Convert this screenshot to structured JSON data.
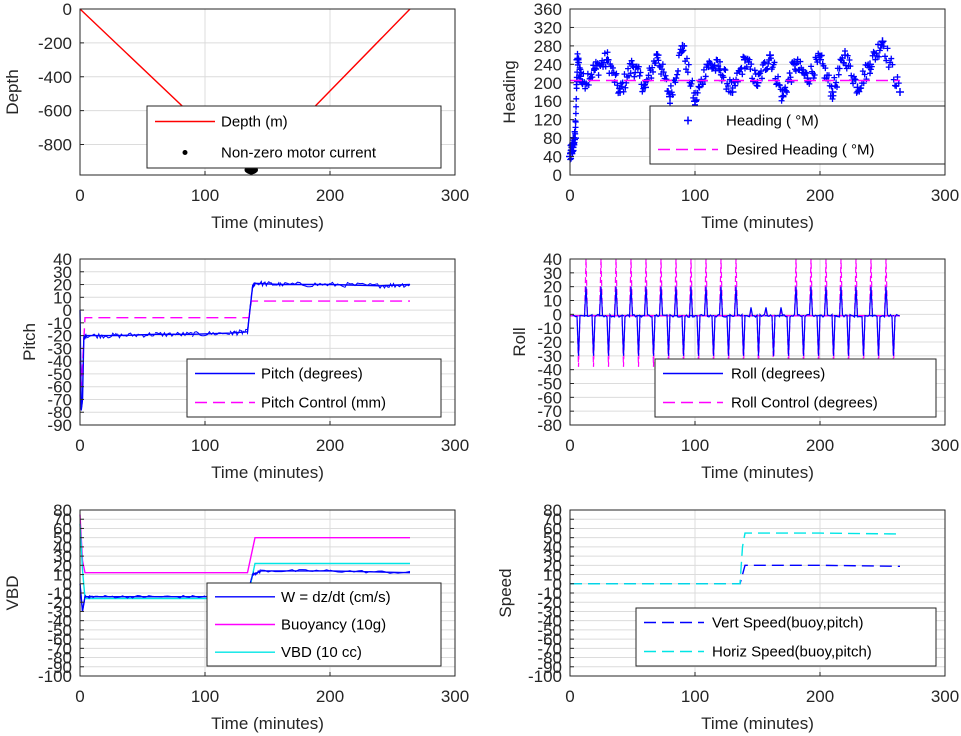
{
  "chart_data": [
    {
      "type": "line",
      "ylabel": "Depth",
      "xlabel": "Time (minutes)",
      "xlim": [
        0,
        300
      ],
      "ylim": [
        -980,
        0
      ],
      "xticks": [
        0,
        100,
        200,
        300
      ],
      "yticks": [
        0,
        -200,
        -400,
        -600,
        -800
      ],
      "grid": true,
      "legend_placement": "bottom-right",
      "series": [
        {
          "name": "Depth (m)",
          "style": "solid",
          "color": "#ff0000",
          "x": [
            0,
            137,
            264
          ],
          "y": [
            0,
            -960,
            0
          ]
        },
        {
          "name": "Non-zero motor current",
          "style": "dots",
          "color": "#000000",
          "x": [
            134,
            135,
            136,
            137,
            138,
            139,
            140
          ],
          "y": [
            -950,
            -955,
            -958,
            -960,
            -958,
            -955,
            -950
          ]
        }
      ]
    },
    {
      "type": "scatter",
      "ylabel": "Heading",
      "xlabel": "Time (minutes)",
      "xlim": [
        0,
        300
      ],
      "ylim": [
        0,
        360
      ],
      "xticks": [
        0,
        100,
        200,
        300
      ],
      "yticks": [
        0,
        40,
        80,
        120,
        160,
        200,
        240,
        280,
        320,
        360
      ],
      "grid": true,
      "legend_placement": "bottom-right",
      "series": [
        {
          "name": "Heading ( °M)",
          "style": "plus",
          "color": "#0000ff",
          "x": [
            0,
            2,
            4,
            6,
            10,
            20,
            30,
            40,
            50,
            60,
            70,
            80,
            90,
            100,
            110,
            120,
            130,
            140,
            150,
            160,
            170,
            180,
            190,
            200,
            210,
            220,
            230,
            240,
            250,
            264
          ],
          "y": [
            40,
            60,
            80,
            250,
            200,
            230,
            250,
            180,
            240,
            190,
            260,
            170,
            280,
            160,
            240,
            230,
            180,
            250,
            200,
            260,
            170,
            240,
            210,
            250,
            180,
            260,
            190,
            240,
            290,
            180
          ]
        },
        {
          "name": "Desired Heading ( °M)",
          "style": "dashed",
          "color": "#ff00ff",
          "x": [
            0,
            264
          ],
          "y": [
            205,
            205
          ]
        }
      ]
    },
    {
      "type": "line",
      "ylabel": "Pitch",
      "xlabel": "Time (minutes)",
      "xlim": [
        0,
        300
      ],
      "ylim": [
        -90,
        40
      ],
      "xticks": [
        0,
        100,
        200,
        300
      ],
      "yticks": [
        40,
        30,
        20,
        10,
        0,
        -10,
        -20,
        -30,
        -40,
        -50,
        -60,
        -70,
        -80,
        -90
      ],
      "grid": true,
      "legend_placement": "bottom-right",
      "series": [
        {
          "name": "Pitch (degrees)",
          "style": "solid",
          "color": "#0000ff",
          "x": [
            0,
            1,
            2,
            3,
            5,
            30,
            60,
            90,
            120,
            134,
            138,
            140,
            160,
            200,
            240,
            264
          ],
          "y": [
            0,
            -78,
            -70,
            -22,
            -20,
            -20,
            -19,
            -19,
            -18,
            -17,
            18,
            21,
            20,
            20,
            19,
            20
          ]
        },
        {
          "name": "Pitch Control (mm)",
          "style": "dashed",
          "color": "#ff00ff",
          "x": [
            0,
            1,
            4,
            134,
            135,
            137,
            264
          ],
          "y": [
            -40,
            -60,
            -6,
            -6,
            -6,
            7,
            7
          ]
        }
      ]
    },
    {
      "type": "line",
      "ylabel": "Roll",
      "xlabel": "Time (minutes)",
      "xlim": [
        0,
        300
      ],
      "ylim": [
        -80,
        40
      ],
      "xticks": [
        0,
        100,
        200,
        300
      ],
      "yticks": [
        40,
        30,
        20,
        10,
        0,
        -10,
        -20,
        -30,
        -40,
        -50,
        -60,
        -70,
        -80
      ],
      "grid": true,
      "legend_placement": "bottom-right",
      "series": [
        {
          "name": "Roll (degrees)",
          "style": "solid",
          "color": "#0000ff",
          "x": [
            0,
            264
          ],
          "y": [
            -1,
            -1
          ]
        },
        {
          "name": "Roll Control (degrees)",
          "style": "dashed",
          "color": "#ff00ff",
          "x": [
            0,
            264
          ],
          "y": [
            -1,
            -1
          ]
        }
      ]
    },
    {
      "type": "line",
      "ylabel": "VBD",
      "xlabel": "Time (minutes)",
      "xlim": [
        0,
        300
      ],
      "ylim": [
        -100,
        80
      ],
      "xticks": [
        0,
        100,
        200,
        300
      ],
      "yticks": [
        80,
        70,
        60,
        50,
        40,
        30,
        20,
        10,
        0,
        -10,
        -20,
        -30,
        -40,
        -50,
        -60,
        -70,
        -80,
        -90,
        -100
      ],
      "grid": true,
      "legend_placement": "bottom-right",
      "series": [
        {
          "name": "W = dz/dt (cm/s)",
          "style": "solid",
          "color": "#0000ff",
          "x": [
            0,
            2,
            4,
            10,
            50,
            100,
            134,
            138,
            145,
            200,
            264
          ],
          "y": [
            0,
            -30,
            -14,
            -14,
            -14,
            -14,
            -12,
            10,
            14,
            14,
            12
          ]
        },
        {
          "name": "Buoyancy (10g)",
          "style": "solid",
          "color": "#ff00ff",
          "x": [
            0,
            2,
            4,
            134,
            140,
            264
          ],
          "y": [
            75,
            25,
            12,
            12,
            50,
            50
          ]
        },
        {
          "name": "VBD (10 cc)",
          "style": "solid",
          "color": "#00e6e6",
          "x": [
            0,
            2,
            4,
            134,
            140,
            264
          ],
          "y": [
            65,
            15,
            -16,
            -16,
            22,
            22
          ]
        }
      ]
    },
    {
      "type": "line",
      "ylabel": "Speed",
      "xlabel": "Time (minutes)",
      "xlim": [
        0,
        300
      ],
      "ylim": [
        -100,
        80
      ],
      "xticks": [
        0,
        100,
        200,
        300
      ],
      "yticks": [
        80,
        70,
        60,
        50,
        40,
        30,
        20,
        10,
        0,
        -10,
        -20,
        -30,
        -40,
        -50,
        -60,
        -70,
        -80,
        -90,
        -100
      ],
      "grid": true,
      "legend_placement": "bottom-right",
      "series": [
        {
          "name": "Vert Speed(buoy,pitch)",
          "style": "dashed",
          "color": "#0000ff",
          "x": [
            0,
            136,
            138,
            140,
            200,
            264
          ],
          "y": [
            0,
            0,
            10,
            20,
            20,
            19
          ]
        },
        {
          "name": "Horiz Speed(buoy,pitch)",
          "style": "dashed",
          "color": "#00e6e6",
          "x": [
            0,
            136,
            138,
            140,
            200,
            264
          ],
          "y": [
            0,
            0,
            40,
            55,
            55,
            54
          ]
        }
      ]
    }
  ]
}
